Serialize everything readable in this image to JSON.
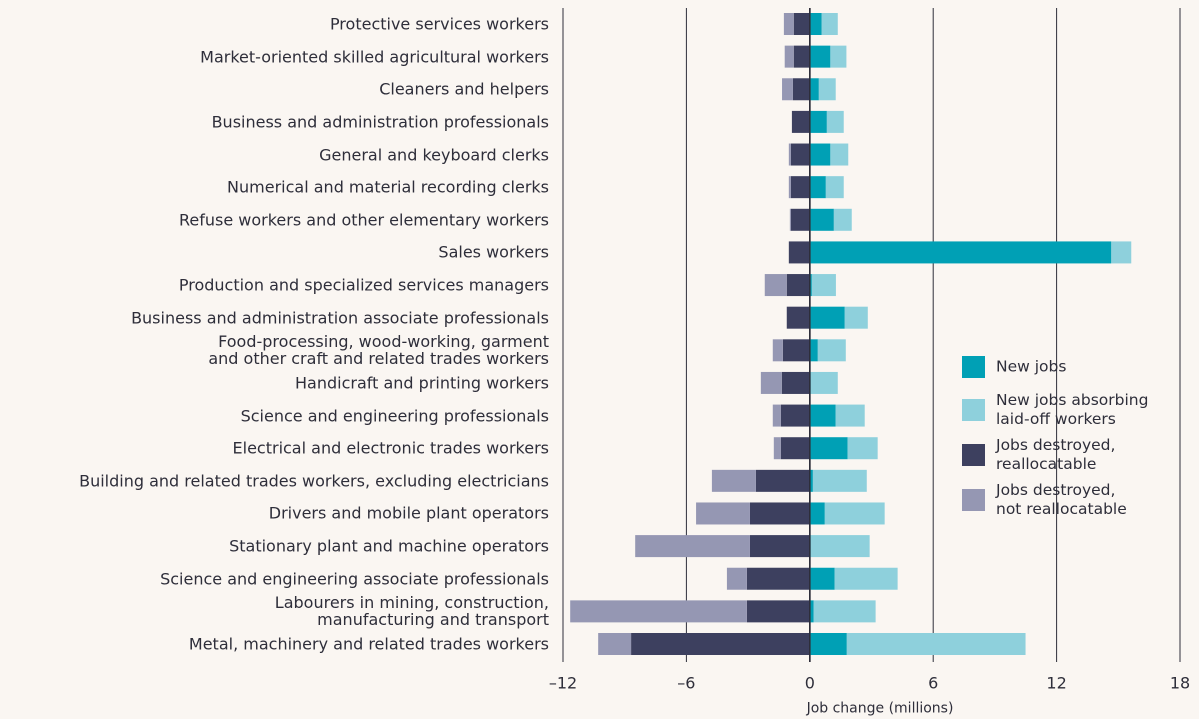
{
  "chart_data": {
    "type": "bar",
    "orientation": "horizontal",
    "stacked": true,
    "xlabel": "Job change (millions)",
    "categories": [
      "Protective services workers",
      "Market-oriented skilled agricultural workers",
      "Cleaners and helpers",
      "Business and administration professionals",
      "General and keyboard clerks",
      "Numerical and material recording clerks",
      "Refuse workers and other elementary workers",
      "Sales workers",
      "Production and specialized services managers",
      "Business and administration associate professionals",
      "Food-processing, wood-working, garment\nand other craft and related trades workers",
      "Handicraft and printing workers",
      "Science and engineering professionals",
      "Electrical and electronic trades workers",
      "Building and related trades workers, excluding electricians",
      "Drivers and mobile plant operators",
      "Stationary plant and machine operators",
      "Science and engineering associate professionals",
      "Labourers in mining, construction,\nmanufacturing and transport",
      "Metal, machinery and related trades workers"
    ],
    "series": [
      {
        "name": "New jobs",
        "color": "#00a0b5",
        "values": [
          0.58,
          1.0,
          0.44,
          0.83,
          1.0,
          0.78,
          1.17,
          14.66,
          0.1,
          1.7,
          0.39,
          0.05,
          1.26,
          1.84,
          0.15,
          0.73,
          0.05,
          1.21,
          0.19,
          1.8
        ]
      },
      {
        "name": "New jobs absorbing\nlaid-off workers",
        "color": "#8ed0dc",
        "values": [
          0.78,
          0.78,
          0.82,
          0.82,
          0.87,
          0.87,
          0.87,
          0.97,
          1.17,
          1.12,
          1.36,
          1.31,
          1.41,
          1.46,
          2.62,
          2.91,
          2.86,
          3.06,
          3.01,
          8.69
        ]
      },
      {
        "name": "Jobs destroyed,\nreallocatable",
        "color": "#3d405f",
        "values": [
          -0.78,
          -0.78,
          -0.82,
          -0.87,
          -0.92,
          -0.92,
          -0.92,
          -1.02,
          -1.12,
          -1.12,
          -1.31,
          -1.36,
          -1.41,
          -1.41,
          -2.62,
          -2.91,
          -2.91,
          -3.06,
          -3.06,
          -8.69
        ]
      },
      {
        "name": "Jobs destroyed,\nnot reallocatable",
        "color": "#9597b3",
        "values": [
          -0.48,
          -0.44,
          -0.53,
          0,
          -0.1,
          -0.1,
          -0.05,
          0,
          -1.07,
          0,
          -0.49,
          -1.02,
          -0.39,
          -0.34,
          -2.14,
          -2.62,
          -5.58,
          -0.97,
          -8.59,
          -1.6
        ]
      }
    ],
    "xlim": [
      -12,
      18
    ],
    "xticks": [
      {
        "value": -12,
        "label": "–12"
      },
      {
        "value": -6,
        "label": "–6"
      },
      0,
      6,
      12,
      18
    ],
    "grid": true,
    "legend": "right"
  }
}
